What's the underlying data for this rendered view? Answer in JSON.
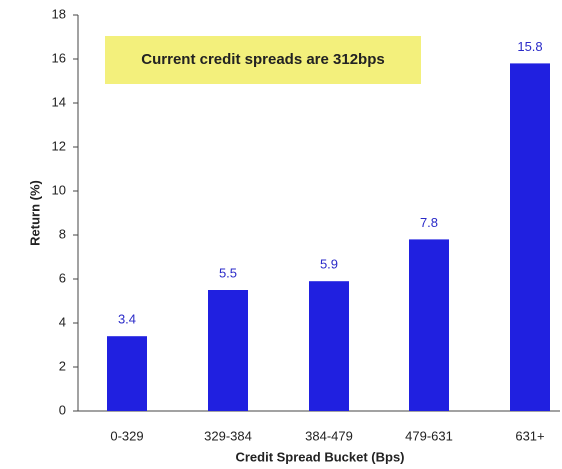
{
  "chart_data": {
    "type": "bar",
    "categories": [
      "0-329",
      "329-384",
      "384-479",
      "479-631",
      "631+"
    ],
    "values": [
      3.4,
      5.5,
      5.9,
      7.8,
      15.8
    ],
    "color": "#2020e0",
    "label_color": "#2a2ac8",
    "ylim": [
      0,
      18
    ],
    "yticks": [
      0,
      2,
      4,
      6,
      8,
      10,
      12,
      14,
      16,
      18
    ],
    "ylabel": "Return (%)",
    "xlabel": "Credit Spread Bucket (Bps)",
    "annotation": "Current credit spreads are 312bps",
    "annotation_color": "#f3f07c"
  }
}
